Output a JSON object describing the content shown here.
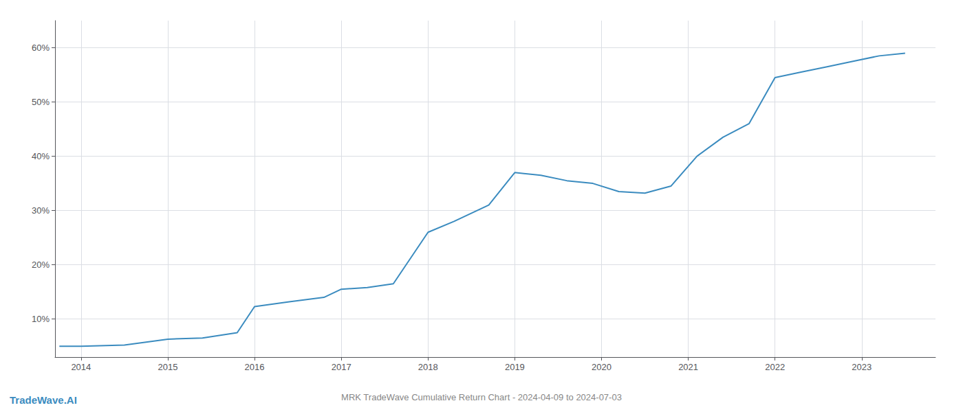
{
  "chart_data": {
    "type": "line",
    "title": "MRK TradeWave Cumulative Return Chart - 2024-04-09 to 2024-07-03",
    "annotations": [
      {
        "text": "TradeWave.AI",
        "color": "#3a8bbf"
      }
    ],
    "x": [
      2013.75,
      2014.0,
      2014.5,
      2015.0,
      2015.4,
      2015.8,
      2016.0,
      2016.4,
      2016.8,
      2017.0,
      2017.3,
      2017.6,
      2018.0,
      2018.3,
      2018.7,
      2019.0,
      2019.3,
      2019.6,
      2019.9,
      2020.2,
      2020.5,
      2020.8,
      2021.1,
      2021.4,
      2021.7,
      2022.0,
      2022.3,
      2022.6,
      2022.9,
      2023.2,
      2023.5
    ],
    "values": [
      5.0,
      5.0,
      5.2,
      6.3,
      6.5,
      7.5,
      12.3,
      13.2,
      14.0,
      15.5,
      15.8,
      16.5,
      26.0,
      28.0,
      31.0,
      37.0,
      36.5,
      35.5,
      35.0,
      33.5,
      33.2,
      34.5,
      40.0,
      43.5,
      46.0,
      54.5,
      55.5,
      56.5,
      57.5,
      58.5,
      59.0
    ],
    "color": "#3a8bbf",
    "xlim": [
      2013.7,
      2023.85
    ],
    "xticks": [
      2014,
      2015,
      2016,
      2017,
      2018,
      2019,
      2020,
      2021,
      2022,
      2023
    ],
    "ylim": [
      3,
      65
    ],
    "yticks": [
      {
        "value": 10,
        "label": "10%"
      },
      {
        "value": 20,
        "label": "20%"
      },
      {
        "value": 30,
        "label": "30%"
      },
      {
        "value": 40,
        "label": "40%"
      },
      {
        "value": 50,
        "label": "50%"
      },
      {
        "value": 60,
        "label": "60%"
      }
    ],
    "grid": true
  }
}
